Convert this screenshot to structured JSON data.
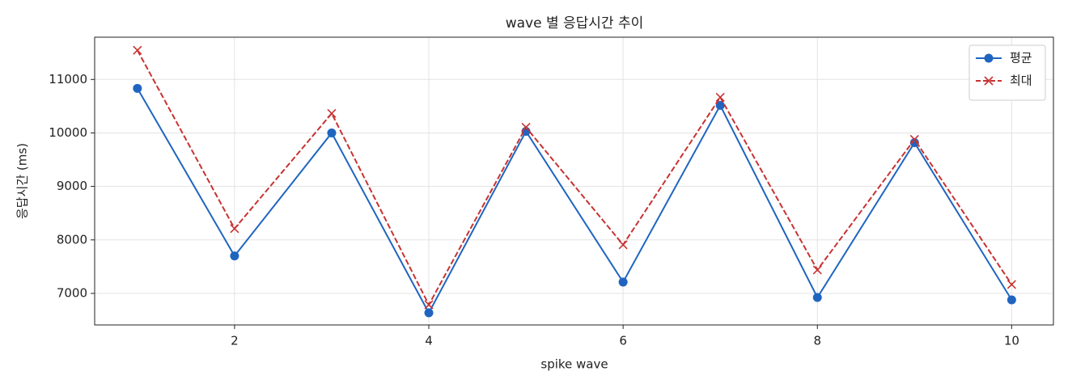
{
  "chart_data": {
    "type": "line",
    "title": "wave 별 응답시간 추이",
    "xlabel": "spike wave",
    "ylabel": "응답시간 (ms)",
    "x": [
      1,
      2,
      3,
      4,
      5,
      6,
      7,
      8,
      9,
      10
    ],
    "series": [
      {
        "name": "평균",
        "color": "#1f65c0",
        "marker": "o",
        "linestyle": "solid",
        "values": [
          10833,
          7700,
          10000,
          6636,
          10030,
          7212,
          10515,
          6924,
          9818,
          6879
        ]
      },
      {
        "name": "최대",
        "color": "#c83232",
        "marker": "x",
        "linestyle": "dashed",
        "values": [
          11545,
          8212,
          10364,
          6788,
          10106,
          7909,
          10667,
          7439,
          9879,
          7167
        ]
      }
    ],
    "xlim": [
      0.56,
      10.43
    ],
    "xticks": [
      2,
      4,
      6,
      8,
      10
    ],
    "ylim": [
      6410,
      11790
    ],
    "yticks": [
      7000,
      8000,
      9000,
      10000,
      11000
    ],
    "grid": true,
    "legend": "upper right"
  }
}
